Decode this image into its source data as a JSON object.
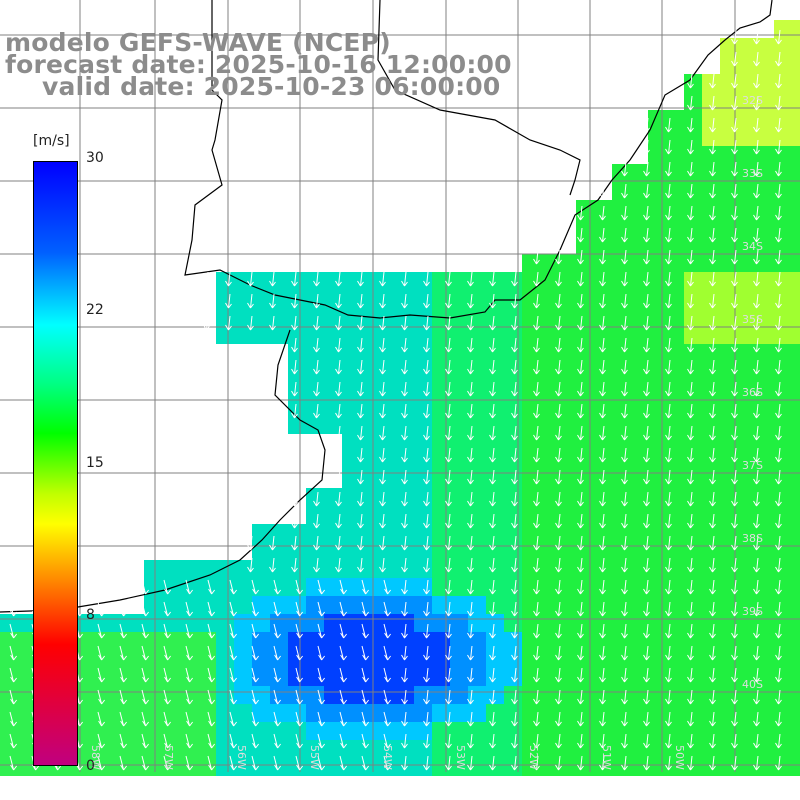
{
  "title": {
    "line1": "modelo GEFS-WAVE (NCEP)",
    "line2": "forecast date: 2025-10-16 12:00:00",
    "line3": "valid date: 2025-10-23 06:00:00"
  },
  "colorbar": {
    "unit": "[m/s]",
    "ticks": [
      "30",
      "22",
      "15",
      "8",
      "0"
    ],
    "tick_values": [
      30,
      22,
      15,
      8,
      0
    ],
    "colors": [
      "#0000ff",
      "#0080ff",
      "#00ffff",
      "#00ff80",
      "#00ff00",
      "#80ff00",
      "#ffff00",
      "#ff8000",
      "#ff0000",
      "#c00080"
    ]
  },
  "map": {
    "lat_labels": [
      "32S",
      "33S",
      "34S",
      "35S",
      "36S",
      "37S",
      "38S",
      "39S",
      "40S"
    ],
    "lon_labels": [
      "58W",
      "57W",
      "56W",
      "55W",
      "54W",
      "53W",
      "52W",
      "51W",
      "50W"
    ],
    "land_color": "#ffffff",
    "grid_color": "#808080",
    "coast_color": "#000000",
    "arrow_color": "#ffffff"
  }
}
